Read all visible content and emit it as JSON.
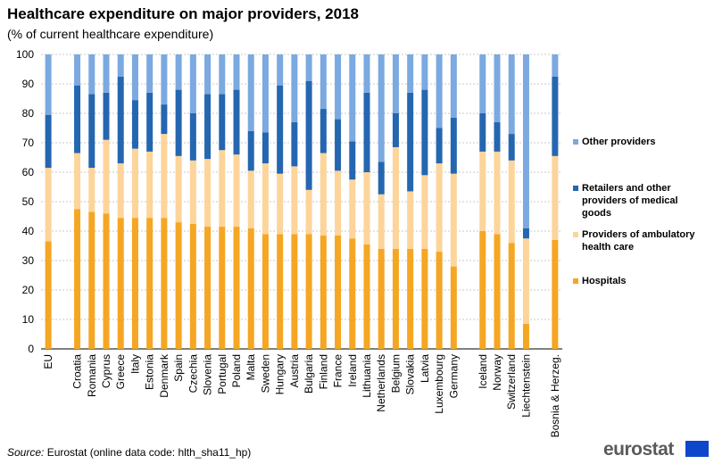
{
  "title": "Healthcare expenditure on major providers, 2018",
  "subtitle": "(% of current healthcare expenditure)",
  "source_label": "Source:",
  "source_text": " Eurostat (online data code: hlth_sha11_hp)",
  "logo_text": "eurostat",
  "colors": {
    "hospitals": "#f5a623",
    "ambulatory": "#fdd49a",
    "retailers": "#2566b0",
    "other": "#7ba9e0"
  },
  "legend": [
    {
      "key": "other",
      "label": "Other providers"
    },
    {
      "key": "retailers",
      "label": "Retailers and other providers of medical goods"
    },
    {
      "key": "ambulatory",
      "label": "Providers of ambulatory health care"
    },
    {
      "key": "hospitals",
      "label": "Hospitals"
    }
  ],
  "chart_data": {
    "type": "bar",
    "stacked": true,
    "title": "Healthcare expenditure on major providers, 2018",
    "ylabel": "% of current healthcare expenditure",
    "ylim": [
      0,
      100
    ],
    "yticks": [
      0,
      10,
      20,
      30,
      40,
      50,
      60,
      70,
      80,
      90,
      100
    ],
    "grid": true,
    "legend_position": "right",
    "categories": [
      "EU",
      "",
      "Croatia",
      "Romania",
      "Cyprus",
      "Greece",
      "Italy",
      "Estonia",
      "Denmark",
      "Spain",
      "Czechia",
      "Slovenia",
      "Portugal",
      "Poland",
      "Malta",
      "Sweden",
      "Hungary",
      "Austria",
      "Bulgaria",
      "Finland",
      "France",
      "Ireland",
      "Lithuania",
      "Netherlands",
      "Belgium",
      "Slovakia",
      "Latvia",
      "Luxembourg",
      "Germany",
      "",
      "Iceland",
      "Norway",
      "Switzerland",
      "Liechtenstein",
      "",
      "Bosnia & Herzeg."
    ],
    "series": [
      {
        "name": "Hospitals",
        "key": "hospitals",
        "values": [
          36.5,
          null,
          47.5,
          46.5,
          46,
          44.5,
          44.5,
          44.5,
          44.5,
          43,
          42.5,
          41.5,
          41.5,
          41.5,
          41,
          39,
          39,
          39,
          39,
          38.5,
          38.5,
          37.5,
          35.5,
          34,
          34,
          34,
          34,
          33,
          28,
          null,
          40,
          39,
          36,
          8.5,
          null,
          37
        ]
      },
      {
        "name": "Providers of ambulatory health care",
        "key": "ambulatory",
        "values": [
          25,
          null,
          19,
          15,
          25,
          18.5,
          23.5,
          22.5,
          28.5,
          22.5,
          21.5,
          23,
          26,
          24.5,
          19.5,
          24,
          20.5,
          23,
          15,
          28,
          22,
          20,
          24.5,
          18.5,
          34.5,
          19.5,
          25,
          30,
          31.5,
          null,
          27,
          28,
          28,
          29,
          null,
          28.5
        ]
      },
      {
        "name": "Retailers and other providers of medical goods",
        "key": "retailers",
        "values": [
          18,
          null,
          23,
          25,
          16,
          29.5,
          16.5,
          20,
          10,
          22.5,
          16,
          22,
          19,
          22,
          13.5,
          10.5,
          30,
          15,
          37,
          15,
          17.5,
          13,
          27,
          11,
          11.5,
          33.5,
          29,
          12,
          19,
          null,
          13,
          10,
          9,
          3.5,
          null,
          27
        ]
      },
      {
        "name": "Other providers",
        "key": "other",
        "values": [
          20.5,
          null,
          10.5,
          13.5,
          13,
          7.5,
          15.5,
          13,
          17,
          12,
          20,
          13.5,
          13.5,
          12,
          26,
          26.5,
          10.5,
          23,
          9,
          18.5,
          22,
          29.5,
          13,
          36.5,
          20,
          13,
          12,
          25,
          21.5,
          null,
          20,
          23,
          27,
          59,
          null,
          7.5
        ]
      }
    ]
  }
}
